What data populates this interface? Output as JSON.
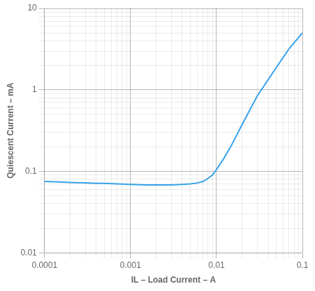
{
  "chart_data": {
    "type": "line",
    "x_label": "IL – Load Current – A",
    "y_label": "Quiescent Current – mA",
    "x": [
      0.0001,
      0.00015,
      0.0002,
      0.0003,
      0.0004,
      0.0005,
      0.0007,
      0.001,
      0.0015,
      0.002,
      0.003,
      0.004,
      0.005,
      0.006,
      0.007,
      0.008,
      0.009,
      0.01,
      0.012,
      0.015,
      0.02,
      0.03,
      0.05,
      0.07,
      0.1
    ],
    "values": [
      0.075,
      0.074,
      0.073,
      0.072,
      0.071,
      0.071,
      0.07,
      0.069,
      0.068,
      0.068,
      0.068,
      0.069,
      0.07,
      0.072,
      0.075,
      0.082,
      0.09,
      0.105,
      0.14,
      0.21,
      0.38,
      0.85,
      1.9,
      3.2,
      5.0
    ],
    "xlim": [
      0.0001,
      0.1
    ],
    "ylim": [
      0.01,
      10
    ],
    "xticks": [
      0.0001,
      0.001,
      0.01,
      0.1
    ],
    "yticks": [
      0.01,
      0.1,
      1,
      10
    ],
    "log": true,
    "grid": true
  }
}
